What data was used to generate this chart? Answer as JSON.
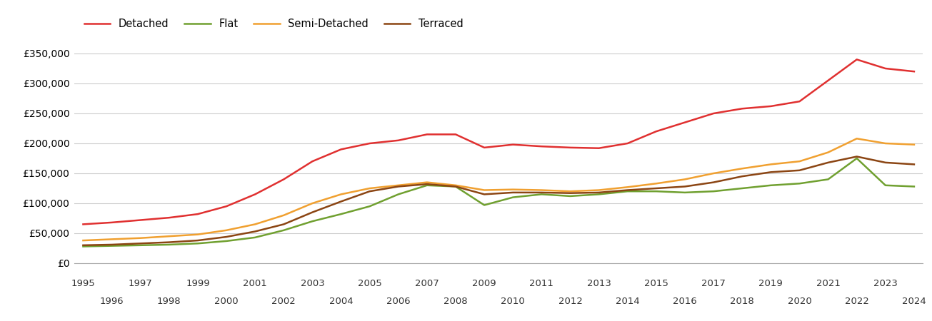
{
  "years": [
    1995,
    1996,
    1997,
    1998,
    1999,
    2000,
    2001,
    2002,
    2003,
    2004,
    2005,
    2006,
    2007,
    2008,
    2009,
    2010,
    2011,
    2012,
    2013,
    2014,
    2015,
    2016,
    2017,
    2018,
    2019,
    2020,
    2021,
    2022,
    2023,
    2024
  ],
  "detached": [
    65000,
    68000,
    72000,
    76000,
    82000,
    95000,
    115000,
    140000,
    170000,
    190000,
    200000,
    205000,
    215000,
    215000,
    193000,
    198000,
    195000,
    193000,
    192000,
    200000,
    220000,
    235000,
    250000,
    258000,
    262000,
    270000,
    305000,
    340000,
    325000,
    320000
  ],
  "flat": [
    28000,
    29000,
    30000,
    31000,
    33000,
    37000,
    43000,
    55000,
    70000,
    82000,
    95000,
    115000,
    130000,
    128000,
    97000,
    110000,
    115000,
    112000,
    115000,
    120000,
    120000,
    118000,
    120000,
    125000,
    130000,
    133000,
    140000,
    175000,
    130000,
    128000
  ],
  "semi_detached": [
    38000,
    40000,
    42000,
    45000,
    48000,
    55000,
    65000,
    80000,
    100000,
    115000,
    125000,
    130000,
    135000,
    130000,
    122000,
    123000,
    122000,
    120000,
    122000,
    127000,
    133000,
    140000,
    150000,
    158000,
    165000,
    170000,
    185000,
    208000,
    200000,
    198000
  ],
  "terraced": [
    30000,
    31000,
    33000,
    35000,
    38000,
    44000,
    53000,
    65000,
    85000,
    103000,
    120000,
    128000,
    132000,
    128000,
    115000,
    118000,
    118000,
    117000,
    118000,
    122000,
    125000,
    128000,
    135000,
    145000,
    152000,
    155000,
    168000,
    178000,
    168000,
    165000
  ],
  "colors": {
    "detached": "#e03030",
    "flat": "#70a030",
    "semi_detached": "#f0a030",
    "terraced": "#8b4513"
  },
  "ylim": [
    0,
    375000
  ],
  "yticks": [
    0,
    50000,
    100000,
    150000,
    200000,
    250000,
    300000,
    350000
  ],
  "legend_labels": [
    "Detached",
    "Flat",
    "Semi-Detached",
    "Terraced"
  ],
  "background_color": "#ffffff",
  "grid_color": "#cccccc",
  "font_color": "#333333",
  "line_width": 1.8
}
